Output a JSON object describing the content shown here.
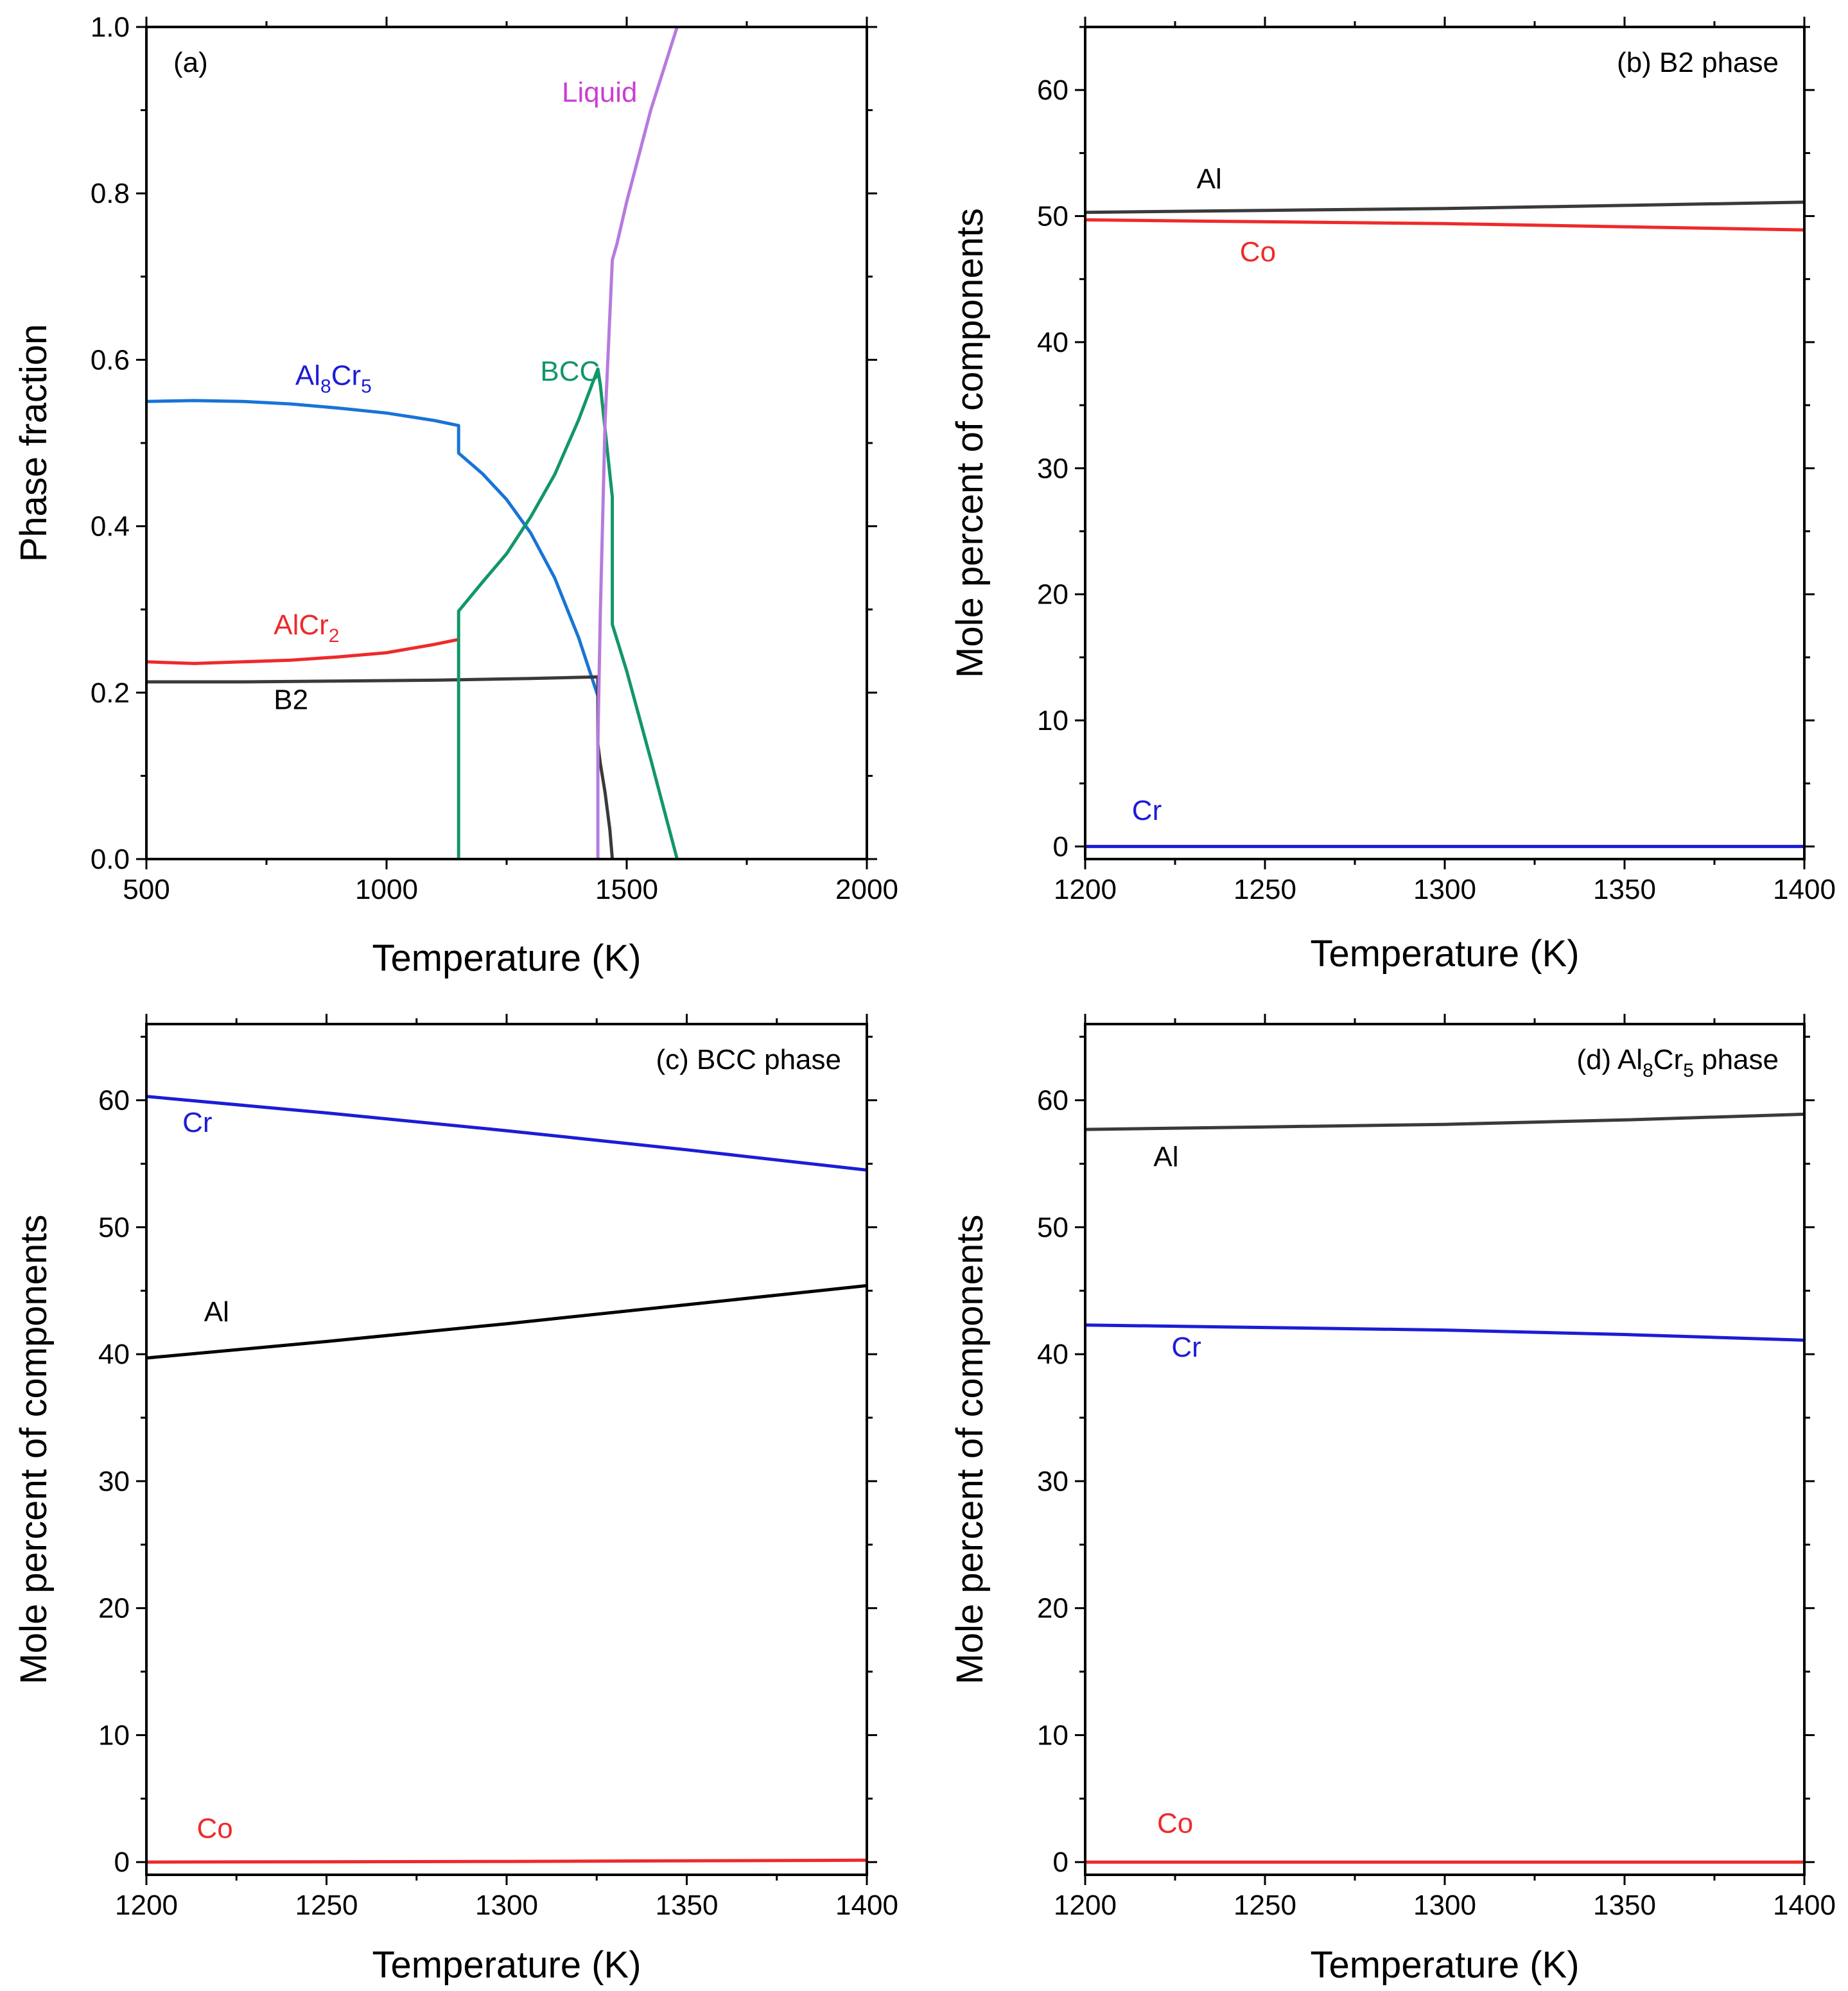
{
  "chart_data": [
    {
      "panel": "a",
      "type": "line",
      "title": "(a)",
      "xlabel": "Temperature (K)",
      "ylabel": "Phase fraction",
      "xlim": [
        500,
        2000
      ],
      "ylim": [
        0,
        1.0
      ],
      "xticks": [
        500,
        1000,
        1500,
        2000
      ],
      "yticks": [
        0.0,
        0.2,
        0.4,
        0.6,
        0.8,
        1.0
      ],
      "ytick_labels": [
        "0.0",
        "0.2",
        "0.4",
        "0.6",
        "0.8",
        "1.0"
      ],
      "series": [
        {
          "name": "Al8Cr5",
          "color": "#1874d6",
          "x": [
            500,
            600,
            700,
            800,
            900,
            1000,
            1100,
            1150,
            1150,
            1200,
            1250,
            1300,
            1350,
            1400,
            1440
          ],
          "y": [
            0.55,
            0.551,
            0.55,
            0.547,
            0.542,
            0.536,
            0.527,
            0.521,
            0.488,
            0.463,
            0.432,
            0.392,
            0.338,
            0.266,
            0.196
          ]
        },
        {
          "name": "AlCr2",
          "color": "#ee2a2a",
          "x": [
            500,
            600,
            700,
            800,
            900,
            1000,
            1100,
            1150
          ],
          "y": [
            0.237,
            0.235,
            0.237,
            0.239,
            0.243,
            0.248,
            0.258,
            0.264
          ]
        },
        {
          "name": "B2",
          "color": "#3a3a3a",
          "x": [
            500,
            700,
            900,
            1100,
            1300,
            1440,
            1440,
            1445,
            1455,
            1465,
            1470
          ],
          "y": [
            0.213,
            0.213,
            0.214,
            0.215,
            0.217,
            0.219,
            0.138,
            0.115,
            0.08,
            0.035,
            0.0
          ]
        },
        {
          "name": "BCC",
          "color": "#12966a",
          "x": [
            1150,
            1150,
            1200,
            1250,
            1300,
            1350,
            1400,
            1440,
            1445,
            1470,
            1470,
            1500,
            1550,
            1605
          ],
          "y": [
            0.0,
            0.298,
            0.333,
            0.367,
            0.411,
            0.462,
            0.528,
            0.589,
            0.57,
            0.435,
            0.282,
            0.226,
            0.12,
            0.0
          ]
        },
        {
          "name": "Liquid",
          "color": "#b67bde",
          "x": [
            1440,
            1440,
            1445,
            1455,
            1470,
            1480,
            1500,
            1550,
            1605
          ],
          "y": [
            0.0,
            0.14,
            0.295,
            0.525,
            0.72,
            0.74,
            0.79,
            0.9,
            1.0
          ]
        }
      ],
      "annotations": [
        {
          "text": "Liquid",
          "color": "#c93fd1",
          "x": 1365,
          "y": 0.91
        },
        {
          "text": "BCC",
          "color": "#12966a",
          "x": 1320,
          "y": 0.575
        },
        {
          "text": "AlCr2",
          "color": "#ee2a2a",
          "x": 765,
          "y": 0.27
        },
        {
          "text": "B2",
          "color": "#000000",
          "x": 765,
          "y": 0.18
        },
        {
          "text": "Al8Cr5",
          "color": "#1c1cd6",
          "x": 810,
          "y": 0.57
        }
      ]
    },
    {
      "panel": "b",
      "type": "line",
      "title": "(b) B2 phase",
      "xlabel": "Temperature (K)",
      "ylabel": "Mole percent of components",
      "xlim": [
        1200,
        1400
      ],
      "ylim": [
        -1,
        65
      ],
      "xticks": [
        1200,
        1250,
        1300,
        1350,
        1400
      ],
      "yticks": [
        0,
        10,
        20,
        30,
        40,
        50,
        60
      ],
      "series": [
        {
          "name": "Al",
          "color": "#3a3a3a",
          "x": [
            1200,
            1250,
            1300,
            1350,
            1400
          ],
          "y": [
            50.3,
            50.45,
            50.6,
            50.85,
            51.1
          ]
        },
        {
          "name": "Co",
          "color": "#ee2a2a",
          "x": [
            1200,
            1250,
            1300,
            1350,
            1400
          ],
          "y": [
            49.7,
            49.55,
            49.4,
            49.15,
            48.9
          ]
        },
        {
          "name": "Cr",
          "color": "#1c1cd6",
          "x": [
            1200,
            1400
          ],
          "y": [
            0,
            0
          ]
        }
      ],
      "annotations": [
        {
          "text": "Al",
          "color": "#000000",
          "x": 1231,
          "y": 52.2
        },
        {
          "text": "Co",
          "color": "#ee2a2a",
          "x": 1243,
          "y": 46.4
        },
        {
          "text": "Cr",
          "color": "#1c1cd6",
          "x": 1213,
          "y": 2.1
        }
      ]
    },
    {
      "panel": "c",
      "type": "line",
      "title": "(c) BCC phase",
      "xlabel": "Temperature (K)",
      "ylabel": "Mole percent of components",
      "xlim": [
        1200,
        1400
      ],
      "ylim": [
        -1,
        66
      ],
      "xticks": [
        1200,
        1250,
        1300,
        1350,
        1400
      ],
      "yticks": [
        0,
        10,
        20,
        30,
        40,
        50,
        60
      ],
      "series": [
        {
          "name": "Cr",
          "color": "#1c1cd6",
          "x": [
            1200,
            1250,
            1300,
            1350,
            1400
          ],
          "y": [
            60.3,
            59.0,
            57.6,
            56.1,
            54.5
          ]
        },
        {
          "name": "Al",
          "color": "#000000",
          "x": [
            1200,
            1250,
            1300,
            1350,
            1400
          ],
          "y": [
            39.7,
            41.0,
            42.4,
            43.9,
            45.4
          ]
        },
        {
          "name": "Co",
          "color": "#ee2a2a",
          "x": [
            1200,
            1300,
            1400
          ],
          "y": [
            0.0,
            0.05,
            0.15
          ]
        }
      ],
      "annotations": [
        {
          "text": "Cr",
          "color": "#1c1cd6",
          "x": 1210,
          "y": 57.5
        },
        {
          "text": "Al",
          "color": "#000000",
          "x": 1216,
          "y": 42.6
        },
        {
          "text": "Co",
          "color": "#ee2a2a",
          "x": 1214,
          "y": 1.9
        }
      ]
    },
    {
      "panel": "d",
      "type": "line",
      "title": "(d) Al8Cr5 phase",
      "xlabel": "Temperature (K)",
      "ylabel": "Mole percent of components",
      "xlim": [
        1200,
        1400
      ],
      "ylim": [
        -1,
        66
      ],
      "xticks": [
        1200,
        1250,
        1300,
        1350,
        1400
      ],
      "yticks": [
        0,
        10,
        20,
        30,
        40,
        50,
        60
      ],
      "series": [
        {
          "name": "Al",
          "color": "#3a3a3a",
          "x": [
            1200,
            1250,
            1300,
            1350,
            1400
          ],
          "y": [
            57.7,
            57.9,
            58.1,
            58.45,
            58.9
          ]
        },
        {
          "name": "Cr",
          "color": "#1c1cd6",
          "x": [
            1200,
            1250,
            1300,
            1350,
            1400
          ],
          "y": [
            42.3,
            42.1,
            41.9,
            41.55,
            41.1
          ]
        },
        {
          "name": "Co",
          "color": "#ee2a2a",
          "x": [
            1200,
            1400
          ],
          "y": [
            0,
            0
          ]
        }
      ],
      "annotations": [
        {
          "text": "Al",
          "color": "#000000",
          "x": 1219,
          "y": 54.8
        },
        {
          "text": "Cr",
          "color": "#1c1cd6",
          "x": 1224,
          "y": 39.8
        },
        {
          "text": "Co",
          "color": "#ee2a2a",
          "x": 1220,
          "y": 2.3
        }
      ]
    }
  ]
}
